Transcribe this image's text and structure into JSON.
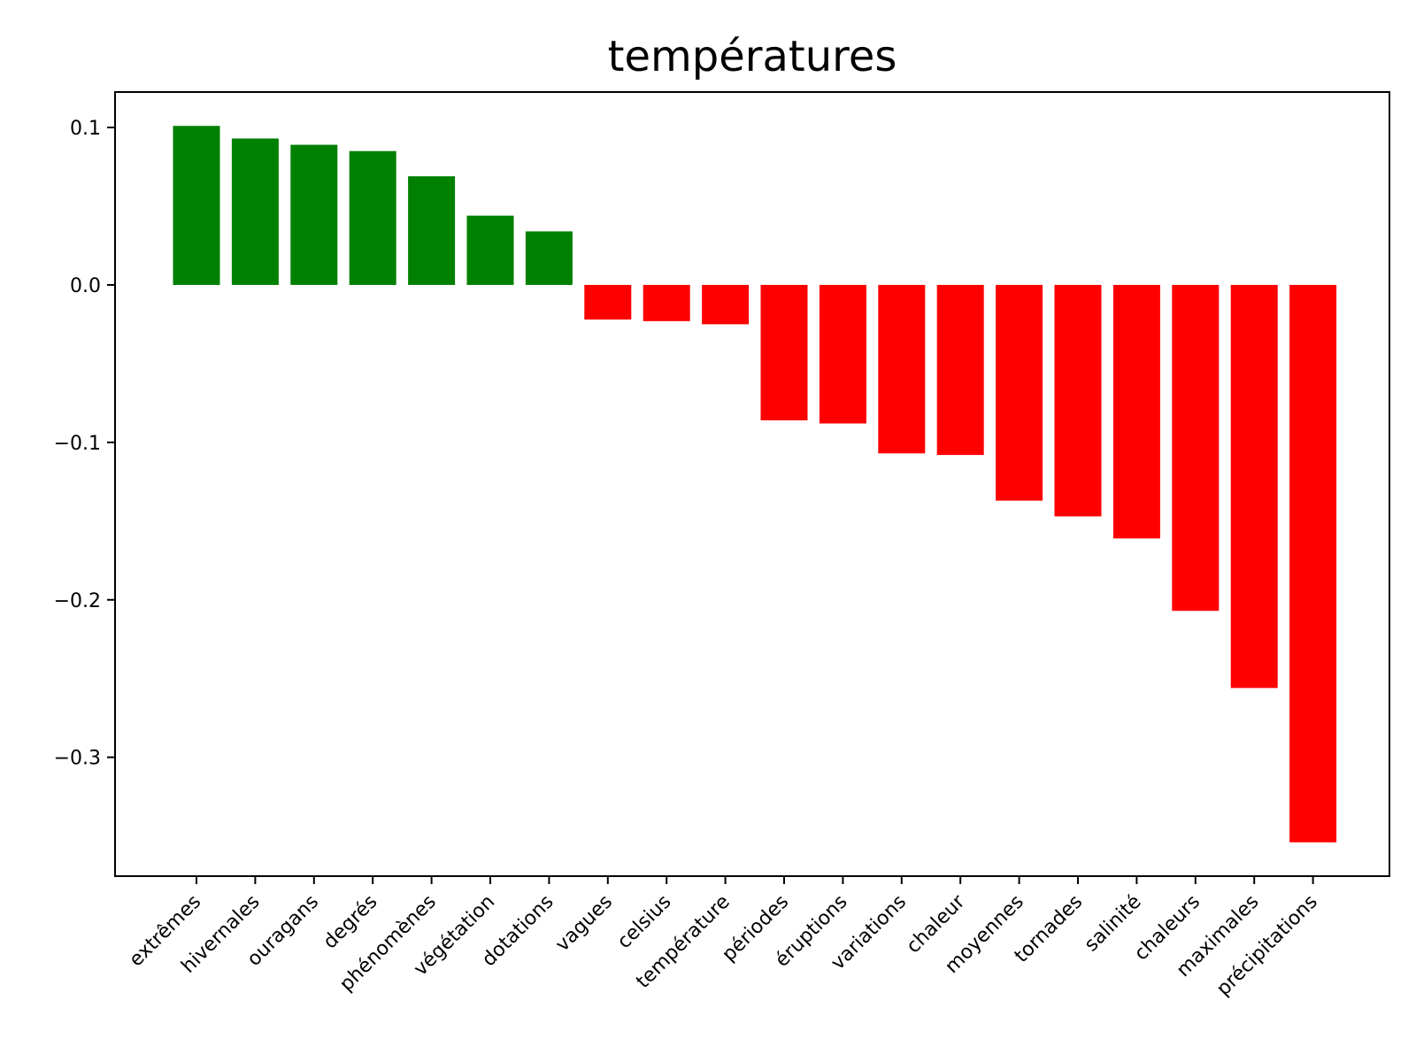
{
  "chart_data": {
    "type": "bar",
    "title": "températures",
    "xlabel": "",
    "ylabel": "",
    "categories": [
      "extrêmes",
      "hivernales",
      "ouragans",
      "degrés",
      "phénomènes",
      "végétation",
      "dotations",
      "vagues",
      "celsius",
      "température",
      "périodes",
      "éruptions",
      "variations",
      "chaleur",
      "moyennes",
      "tornades",
      "salinité",
      "chaleurs",
      "maximales",
      "précipitations"
    ],
    "values": [
      0.101,
      0.093,
      0.089,
      0.085,
      0.069,
      0.044,
      0.034,
      -0.022,
      -0.023,
      -0.025,
      -0.086,
      -0.088,
      -0.107,
      -0.108,
      -0.137,
      -0.147,
      -0.161,
      -0.207,
      -0.256,
      -0.354
    ],
    "ylim": [
      -0.3755,
      0.1225
    ],
    "yticks": [
      0.1,
      0.0,
      -0.1,
      -0.2,
      -0.3
    ],
    "ytick_labels": [
      "0.1",
      "0.0",
      "−0.1",
      "−0.2",
      "−0.3"
    ],
    "colors": {
      "positive": "#008000",
      "negative": "#ff0000"
    },
    "grid": false,
    "legend": "none"
  }
}
